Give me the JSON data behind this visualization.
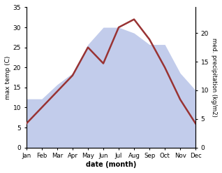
{
  "months": [
    "Jan",
    "Feb",
    "Mar",
    "Apr",
    "May",
    "Jun",
    "Jul",
    "Aug",
    "Sep",
    "Oct",
    "Nov",
    "Dec"
  ],
  "temperature": [
    6,
    10,
    14,
    18,
    25,
    21,
    30,
    32,
    27,
    20,
    12,
    6
  ],
  "precipitation": [
    8.5,
    8.5,
    11,
    13,
    18,
    21,
    21,
    20,
    18,
    18,
    13,
    10
  ],
  "temp_color": "#993333",
  "precip_fill_color": "#b8c4e8",
  "precip_alpha": 0.85,
  "temp_ylim": [
    0,
    35
  ],
  "precip_ylim_max": 24.5,
  "right_yticks": [
    0,
    5,
    10,
    15,
    20
  ],
  "left_yticks": [
    0,
    5,
    10,
    15,
    20,
    25,
    30,
    35
  ],
  "xlabel": "date (month)",
  "ylabel_left": "max temp (C)",
  "ylabel_right": "med. precipitation (kg/m2)",
  "bg_color": "#ffffff",
  "figure_width": 3.18,
  "figure_height": 2.47,
  "dpi": 100
}
